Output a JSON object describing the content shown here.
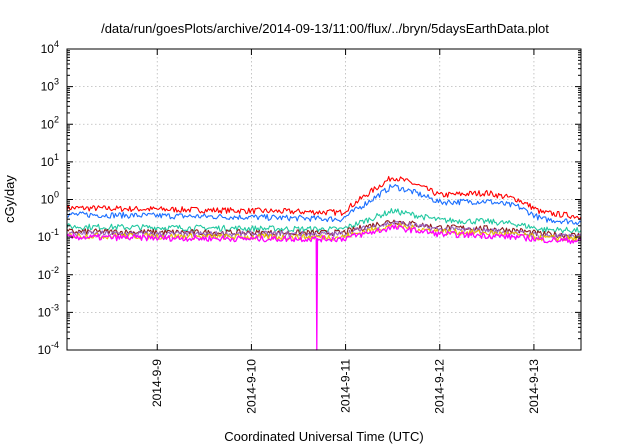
{
  "chart_data": {
    "type": "line",
    "title": "/data/run/goesPlots/archive/2014-09-13/11:00/flux/../bryn/5daysEarthData.plot",
    "xlabel": "Coordinated Universal Time (UTC)",
    "ylabel": "cGy/day",
    "yscale": "log",
    "ylim": [
      0.0001,
      10000
    ],
    "y_ticks": [
      {
        "value": 0.0001,
        "base": "10",
        "exp": "-4"
      },
      {
        "value": 0.001,
        "base": "10",
        "exp": "-3"
      },
      {
        "value": 0.01,
        "base": "10",
        "exp": "-2"
      },
      {
        "value": 0.1,
        "base": "10",
        "exp": "-1"
      },
      {
        "value": 1,
        "base": "10",
        "exp": "0"
      },
      {
        "value": 10,
        "base": "10",
        "exp": "1"
      },
      {
        "value": 100,
        "base": "10",
        "exp": "2"
      },
      {
        "value": 1000,
        "base": "10",
        "exp": "3"
      },
      {
        "value": 10000,
        "base": "10",
        "exp": "4"
      }
    ],
    "xlim": [
      "2014-09-08T01:00",
      "2014-09-13T12:00"
    ],
    "x_ticks": [
      "2014-9-9",
      "2014-9-10",
      "2014-9-11",
      "2014-9-12",
      "2014-9-13"
    ],
    "grid": true,
    "series": [
      {
        "color": "#ff0000",
        "x": [
          "2014-09-08T01:00",
          "2014-09-09T00:00",
          "2014-09-10T00:00",
          "2014-09-10T23:00",
          "2014-09-11T06:00",
          "2014-09-11T12:00",
          "2014-09-11T18:00",
          "2014-09-12T00:00",
          "2014-09-12T12:00",
          "2014-09-12T20:00",
          "2014-09-13T02:00",
          "2014-09-13T12:00"
        ],
        "y": [
          0.6,
          0.55,
          0.5,
          0.45,
          1.5,
          4.0,
          2.5,
          1.3,
          1.5,
          1.0,
          0.45,
          0.35
        ]
      },
      {
        "color": "#1a6eff",
        "x": [
          "2014-09-08T01:00",
          "2014-09-09T00:00",
          "2014-09-10T00:00",
          "2014-09-10T23:00",
          "2014-09-11T06:00",
          "2014-09-11T12:00",
          "2014-09-11T18:00",
          "2014-09-12T00:00",
          "2014-09-12T12:00",
          "2014-09-12T20:00",
          "2014-09-13T02:00",
          "2014-09-13T12:00"
        ],
        "y": [
          0.4,
          0.37,
          0.34,
          0.3,
          0.9,
          2.3,
          1.5,
          0.85,
          0.9,
          0.65,
          0.3,
          0.25
        ]
      },
      {
        "color": "#20c8a0",
        "x": [
          "2014-09-08T01:00",
          "2014-09-09T00:00",
          "2014-09-10T00:00",
          "2014-09-10T23:00",
          "2014-09-11T06:00",
          "2014-09-11T12:00",
          "2014-09-11T18:00",
          "2014-09-12T00:00",
          "2014-09-12T12:00",
          "2014-09-12T20:00",
          "2014-09-13T02:00",
          "2014-09-13T12:00"
        ],
        "y": [
          0.19,
          0.18,
          0.17,
          0.16,
          0.3,
          0.5,
          0.38,
          0.28,
          0.26,
          0.22,
          0.16,
          0.15
        ]
      },
      {
        "color": "#8b1a1a",
        "x": [
          "2014-09-08T01:00",
          "2014-09-09T00:00",
          "2014-09-10T00:00",
          "2014-09-10T23:00",
          "2014-09-11T06:00",
          "2014-09-11T12:00",
          "2014-09-11T18:00",
          "2014-09-12T00:00",
          "2014-09-12T12:00",
          "2014-09-12T20:00",
          "2014-09-13T02:00",
          "2014-09-13T12:00"
        ],
        "y": [
          0.14,
          0.135,
          0.13,
          0.13,
          0.2,
          0.27,
          0.22,
          0.18,
          0.17,
          0.15,
          0.12,
          0.11
        ]
      },
      {
        "color": "#9a60c0",
        "x": [
          "2014-09-08T01:00",
          "2014-09-09T00:00",
          "2014-09-10T00:00",
          "2014-09-10T23:00",
          "2014-09-11T06:00",
          "2014-09-11T12:00",
          "2014-09-11T18:00",
          "2014-09-12T00:00",
          "2014-09-12T12:00",
          "2014-09-12T20:00",
          "2014-09-13T02:00",
          "2014-09-13T12:00"
        ],
        "y": [
          0.125,
          0.12,
          0.12,
          0.12,
          0.18,
          0.24,
          0.2,
          0.16,
          0.15,
          0.13,
          0.11,
          0.1
        ]
      },
      {
        "color": "#e8c000",
        "x": [
          "2014-09-08T01:00",
          "2014-09-09T00:00",
          "2014-09-10T00:00",
          "2014-09-10T23:00",
          "2014-09-11T06:00",
          "2014-09-11T12:00",
          "2014-09-11T18:00",
          "2014-09-12T00:00",
          "2014-09-12T12:00",
          "2014-09-12T20:00",
          "2014-09-13T02:00",
          "2014-09-13T12:00"
        ],
        "y": [
          0.11,
          0.105,
          0.1,
          0.1,
          0.15,
          0.2,
          0.17,
          0.14,
          0.13,
          0.115,
          0.095,
          0.09
        ]
      },
      {
        "color": "#ff00ff",
        "x": [
          "2014-09-08T01:00",
          "2014-09-09T00:00",
          "2014-09-10T00:00",
          "2014-09-10T16:30",
          "2014-09-10T16:40",
          "2014-09-10T16:50",
          "2014-09-10T23:00",
          "2014-09-11T06:00",
          "2014-09-11T12:00",
          "2014-09-11T18:00",
          "2014-09-12T00:00",
          "2014-09-12T12:00",
          "2014-09-12T20:00",
          "2014-09-13T02:00",
          "2014-09-13T12:00"
        ],
        "y": [
          0.1,
          0.095,
          0.09,
          0.09,
          0.0001,
          0.09,
          0.09,
          0.13,
          0.18,
          0.15,
          0.12,
          0.11,
          0.1,
          0.085,
          0.08
        ]
      }
    ]
  }
}
